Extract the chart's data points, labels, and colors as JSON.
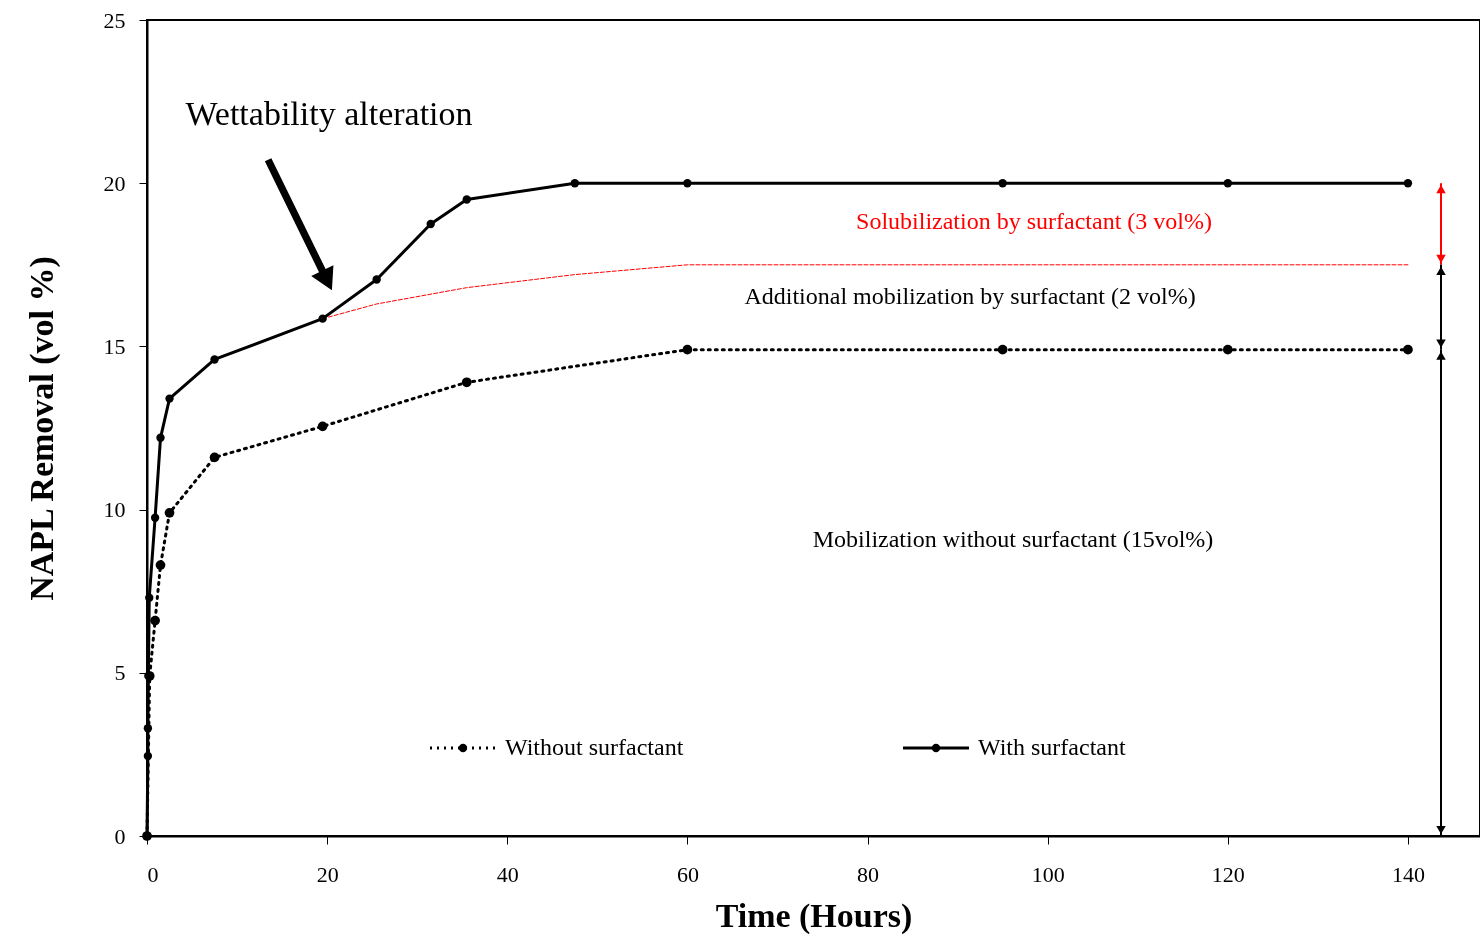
{
  "chart_data": {
    "type": "line",
    "xlabel": "Time (Hours)",
    "ylabel": "NAPL Removal (vol %)",
    "xlim": [
      0,
      148
    ],
    "ylim": [
      0,
      25
    ],
    "xticks": [
      0,
      20,
      40,
      60,
      80,
      100,
      120,
      140
    ],
    "yticks": [
      0,
      5,
      10,
      15,
      20,
      25
    ],
    "grid": false,
    "legend": "bottom",
    "marker": "circle",
    "series": [
      {
        "name": "Without surfactant",
        "color": "#000000",
        "line_style": "dotted",
        "x": [
          0,
          0.3,
          0.9,
          1.5,
          2.5,
          7.5,
          19.5,
          35.5,
          60,
          95,
          120,
          140
        ],
        "values": [
          0,
          4.9,
          6.6,
          8.3,
          9.9,
          11.6,
          12.55,
          13.9,
          14.9,
          14.9,
          14.9,
          14.9
        ]
      },
      {
        "name": "With surfactant",
        "color": "#000000",
        "line_style": "solid",
        "x": [
          0,
          0.1,
          0.1,
          0.15,
          0.25,
          0.9,
          1.5,
          2.5,
          7.5,
          19.5,
          25.5,
          31.5,
          35.5,
          47.5,
          60,
          95,
          120,
          140
        ],
        "values": [
          0,
          2.45,
          3.3,
          4.9,
          7.3,
          9.75,
          12.2,
          13.4,
          14.6,
          15.85,
          17.05,
          18.75,
          19.5,
          20,
          20,
          20,
          20,
          20
        ]
      },
      {
        "color": "#ff0000",
        "line_style": "dashed",
        "marker": "none",
        "x": [
          19.5,
          25.5,
          35.5,
          47.5,
          60,
          140
        ],
        "values": [
          15.85,
          16.3,
          16.8,
          17.2,
          17.5,
          17.5
        ]
      }
    ],
    "annotations": [
      "Wettability alteration",
      "Solubilization by surfactant (3 vol%)",
      "Additional mobilization by surfactant (2 vol%)",
      "Mobilization without surfactant (15vol%)"
    ]
  }
}
